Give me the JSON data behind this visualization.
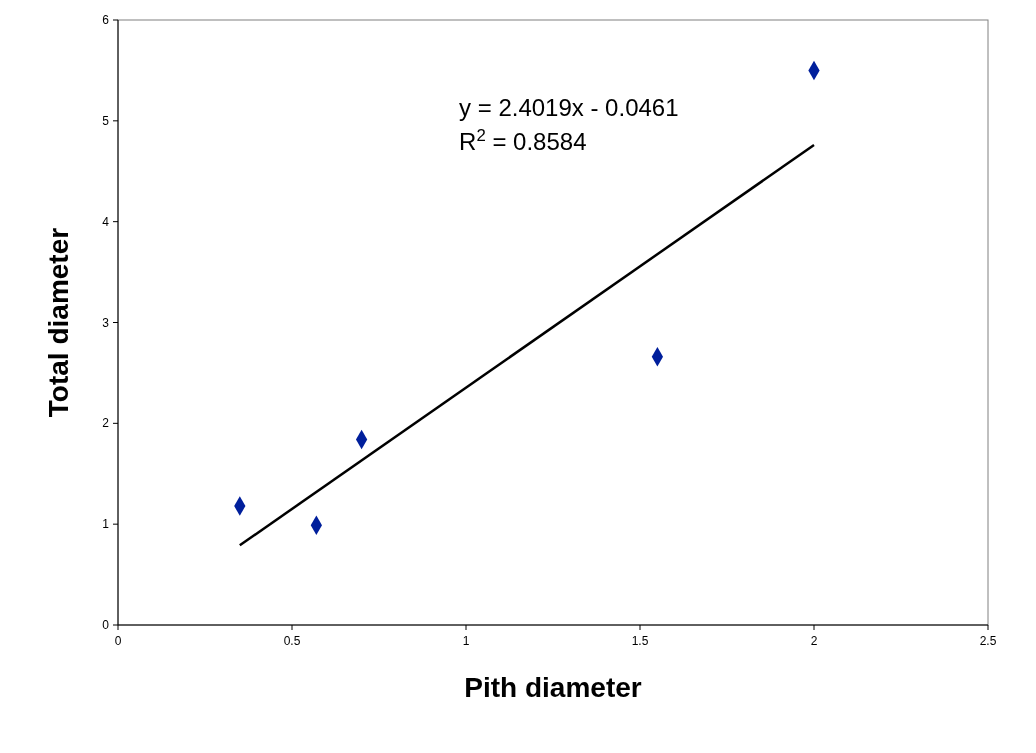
{
  "chart_data": {
    "type": "scatter",
    "xlabel": "Pith diameter",
    "ylabel": "Total diameter",
    "xlim": [
      0,
      2.5
    ],
    "ylim": [
      0,
      6
    ],
    "xticks": [
      0,
      0.5,
      1,
      1.5,
      2,
      2.5
    ],
    "yticks": [
      0,
      1,
      2,
      3,
      4,
      5,
      6
    ],
    "marker": "diamond",
    "grid": false,
    "series": [
      {
        "color": "#001f9c",
        "x": [
          0.35,
          0.57,
          0.7,
          1.55,
          2.0
        ],
        "values": [
          1.18,
          0.99,
          1.84,
          2.66,
          5.5
        ]
      },
      {
        "type": "line",
        "marker": "none",
        "color": "#000000",
        "x": [
          0.35,
          2.0
        ],
        "values": [
          0.79,
          4.76
        ]
      }
    ],
    "annotations": [
      "y = 2.4019x - 0.0461",
      "R$^{2}$ = 0.8584"
    ]
  }
}
